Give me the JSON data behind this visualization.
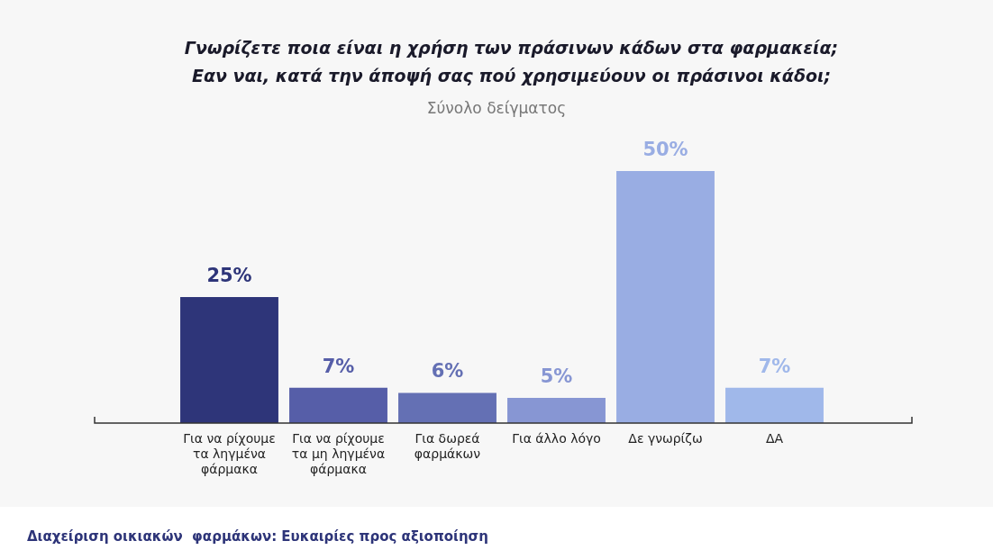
{
  "chart_data": {
    "type": "bar",
    "title": "Γνωρίζετε ποια είναι η χρήση των πράσινων κάδων στα φαρμακεία; Εαν ναι, κατά την άποψή σας πού χρησιμεύουν οι πράσινοι κάδοι;",
    "subtitle": "Σύνολο δείγματος",
    "categories": [
      "Για να ρίχουμε τα ληγμένα φάρμακα",
      "Για να ρίχουμε τα μη ληγμένα φάρμακα",
      "Για δωρεά φαρμάκων",
      "Για άλλο λόγο",
      "Δε γνωρίζω",
      "ΔΑ"
    ],
    "values": [
      25,
      7,
      6,
      5,
      50,
      7
    ],
    "value_labels": [
      "25%",
      "7%",
      "6%",
      "5%",
      "50%",
      "7%"
    ],
    "colors": [
      "#2e3579",
      "#565ea8",
      "#6470b4",
      "#8796d3",
      "#99ade3",
      "#a0b8ea"
    ],
    "grid": false,
    "legend": false,
    "annotations": [
      "Διαχείριση οικιακών  φαρμάκων: Ευκαιρίες προς αξιοποίηση"
    ]
  }
}
